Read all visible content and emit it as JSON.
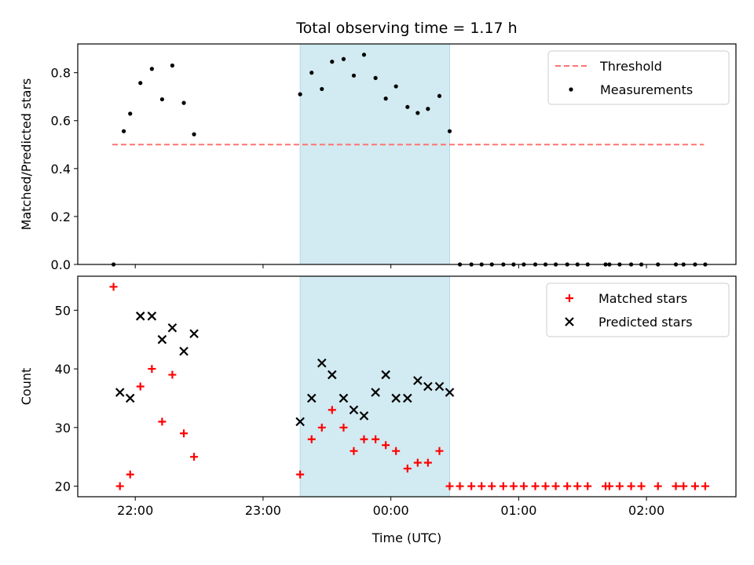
{
  "chart_data": {
    "type": "scatter",
    "title": "Total observing time = 1.17 h",
    "xlabel": "Time (UTC)",
    "x_unit": "hours (UTC clock, values past 24 are after midnight)",
    "xlim": [
      21.55,
      26.7
    ],
    "xticks": [
      {
        "value": 22,
        "label": "22:00"
      },
      {
        "value": 23,
        "label": "23:00"
      },
      {
        "value": 24,
        "label": "00:00"
      },
      {
        "value": 25,
        "label": "01:00"
      },
      {
        "value": 26,
        "label": "02:00"
      }
    ],
    "highlight_span": {
      "x": [
        23.29,
        24.46
      ],
      "color": "#add8e6"
    },
    "panels": [
      {
        "id": "ratio",
        "ylabel": "Matched/Predicted stars",
        "ylim": [
          0.0,
          0.92
        ],
        "yticks": [
          {
            "value": 0.0,
            "label": "0.0"
          },
          {
            "value": 0.2,
            "label": "0.2"
          },
          {
            "value": 0.4,
            "label": "0.4"
          },
          {
            "value": 0.6,
            "label": "0.6"
          },
          {
            "value": 0.8,
            "label": "0.8"
          }
        ],
        "legend": {
          "position": "top-right",
          "entries": [
            "Threshold",
            "Measurements"
          ]
        },
        "threshold": {
          "name": "Threshold",
          "y": 0.5,
          "x": [
            21.82,
            26.45
          ],
          "color": "#ff7373",
          "style": "dashed"
        },
        "series": [
          {
            "name": "Measurements",
            "marker": "dot",
            "color": "#000000",
            "points": [
              [
                21.83,
                0.0
              ],
              [
                21.91,
                0.556
              ],
              [
                21.96,
                0.629
              ],
              [
                22.04,
                0.757
              ],
              [
                22.13,
                0.816
              ],
              [
                22.21,
                0.689
              ],
              [
                22.29,
                0.83
              ],
              [
                22.38,
                0.674
              ],
              [
                22.46,
                0.543
              ],
              [
                23.29,
                0.71
              ],
              [
                23.38,
                0.8
              ],
              [
                23.46,
                0.732
              ],
              [
                23.54,
                0.846
              ],
              [
                23.63,
                0.857
              ],
              [
                23.71,
                0.788
              ],
              [
                23.79,
                0.875
              ],
              [
                23.88,
                0.778
              ],
              [
                23.96,
                0.692
              ],
              [
                24.04,
                0.743
              ],
              [
                24.13,
                0.657
              ],
              [
                24.21,
                0.632
              ],
              [
                24.29,
                0.649
              ],
              [
                24.38,
                0.703
              ],
              [
                24.46,
                0.556
              ],
              [
                24.54,
                0.0
              ],
              [
                24.63,
                0.0
              ],
              [
                24.71,
                0.0
              ],
              [
                24.79,
                0.0
              ],
              [
                24.88,
                0.0
              ],
              [
                24.96,
                0.0
              ],
              [
                25.04,
                0.0
              ],
              [
                25.13,
                0.0
              ],
              [
                25.21,
                0.0
              ],
              [
                25.29,
                0.0
              ],
              [
                25.38,
                0.0
              ],
              [
                25.46,
                0.0
              ],
              [
                25.54,
                0.0
              ],
              [
                25.68,
                0.0
              ],
              [
                25.71,
                0.0
              ],
              [
                25.79,
                0.0
              ],
              [
                25.88,
                0.0
              ],
              [
                25.96,
                0.0
              ],
              [
                26.09,
                0.0
              ],
              [
                26.23,
                0.0
              ],
              [
                26.29,
                0.0
              ],
              [
                26.38,
                0.0
              ],
              [
                26.46,
                0.0
              ]
            ]
          }
        ]
      },
      {
        "id": "count",
        "ylabel": "Count",
        "ylim": [
          18.2,
          55.8
        ],
        "yticks": [
          {
            "value": 20,
            "label": "20"
          },
          {
            "value": 30,
            "label": "30"
          },
          {
            "value": 40,
            "label": "40"
          },
          {
            "value": 50,
            "label": "50"
          }
        ],
        "legend": {
          "position": "top-right",
          "entries": [
            "Matched stars",
            "Predicted stars"
          ]
        },
        "series": [
          {
            "name": "Matched stars",
            "marker": "plus",
            "color": "#ff0000",
            "points": [
              [
                21.83,
                54
              ],
              [
                21.88,
                20
              ],
              [
                21.96,
                22
              ],
              [
                22.04,
                37
              ],
              [
                22.13,
                40
              ],
              [
                22.21,
                31
              ],
              [
                22.29,
                39
              ],
              [
                22.38,
                29
              ],
              [
                22.46,
                25
              ],
              [
                23.29,
                22
              ],
              [
                23.38,
                28
              ],
              [
                23.46,
                30
              ],
              [
                23.54,
                33
              ],
              [
                23.63,
                30
              ],
              [
                23.71,
                26
              ],
              [
                23.79,
                28
              ],
              [
                23.88,
                28
              ],
              [
                23.96,
                27
              ],
              [
                24.04,
                26
              ],
              [
                24.13,
                23
              ],
              [
                24.21,
                24
              ],
              [
                24.29,
                24
              ],
              [
                24.38,
                26
              ],
              [
                24.46,
                20
              ],
              [
                24.54,
                20
              ],
              [
                24.63,
                20
              ],
              [
                24.71,
                20
              ],
              [
                24.79,
                20
              ],
              [
                24.88,
                20
              ],
              [
                24.96,
                20
              ],
              [
                25.04,
                20
              ],
              [
                25.13,
                20
              ],
              [
                25.21,
                20
              ],
              [
                25.29,
                20
              ],
              [
                25.38,
                20
              ],
              [
                25.46,
                20
              ],
              [
                25.54,
                20
              ],
              [
                25.68,
                20
              ],
              [
                25.71,
                20
              ],
              [
                25.79,
                20
              ],
              [
                25.88,
                20
              ],
              [
                25.96,
                20
              ],
              [
                26.09,
                20
              ],
              [
                26.23,
                20
              ],
              [
                26.29,
                20
              ],
              [
                26.38,
                20
              ],
              [
                26.46,
                20
              ]
            ]
          },
          {
            "name": "Predicted stars",
            "marker": "x",
            "color": "#000000",
            "points": [
              [
                21.88,
                36
              ],
              [
                21.96,
                35
              ],
              [
                22.04,
                49
              ],
              [
                22.13,
                49
              ],
              [
                22.21,
                45
              ],
              [
                22.29,
                47
              ],
              [
                22.38,
                43
              ],
              [
                22.46,
                46
              ],
              [
                23.29,
                31
              ],
              [
                23.38,
                35
              ],
              [
                23.46,
                41
              ],
              [
                23.54,
                39
              ],
              [
                23.63,
                35
              ],
              [
                23.71,
                33
              ],
              [
                23.79,
                32
              ],
              [
                23.88,
                36
              ],
              [
                23.96,
                39
              ],
              [
                24.04,
                35
              ],
              [
                24.13,
                35
              ],
              [
                24.21,
                38
              ],
              [
                24.29,
                37
              ],
              [
                24.38,
                37
              ],
              [
                24.46,
                36
              ]
            ]
          }
        ]
      }
    ]
  }
}
